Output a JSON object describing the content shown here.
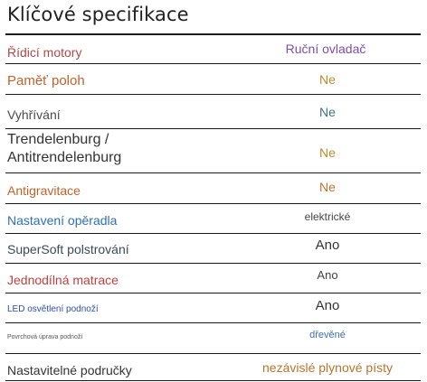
{
  "title": "Klíčové specifikace",
  "rows": [
    {
      "label": "Řídicí motory",
      "value": "Ruční ovladač",
      "label_color": "#b04848",
      "value_color": "#7a4fa8"
    },
    {
      "label": "Paměť poloh",
      "value": "Ne",
      "label_color": "#c0622b",
      "value_color": "#b88a2e"
    },
    {
      "label": "Vyhřívání",
      "value": "Ne",
      "label_color": "#4a4a4a",
      "value_color": "#3e6f91"
    },
    {
      "label": "Trendelenburg / Antitrendelenburg",
      "value": "Ne",
      "label_color": "#333333",
      "value_color": "#b88a2e"
    },
    {
      "label": "Antigravitace",
      "value": "Ne",
      "label_color": "#c0622b",
      "value_color": "#b8732e"
    },
    {
      "label": "Nastavení opěradla",
      "value": "elektrické",
      "label_color": "#2e6fb8",
      "value_color": "#444444"
    },
    {
      "label": "SuperSoft polstrování",
      "value": "Ano",
      "label_color": "#3a4a5a",
      "value_color": "#333333"
    },
    {
      "label": "Jednodílná matrace",
      "value": "Ano",
      "label_color": "#c04040",
      "value_color": "#444444"
    },
    {
      "label": "LED osvětlení podnoží",
      "value": "Ano",
      "label_color": "#2e4fa8",
      "value_color": "#333333"
    },
    {
      "label": "Povrchová úprava podnoží",
      "value": "dřevěné",
      "label_color": "#555555",
      "value_color": "#3e6fb0"
    },
    {
      "label": "Nastavitelné područky",
      "value": "nezávislé plynové písty",
      "label_color": "#333333",
      "value_color": "#b8742e"
    }
  ]
}
